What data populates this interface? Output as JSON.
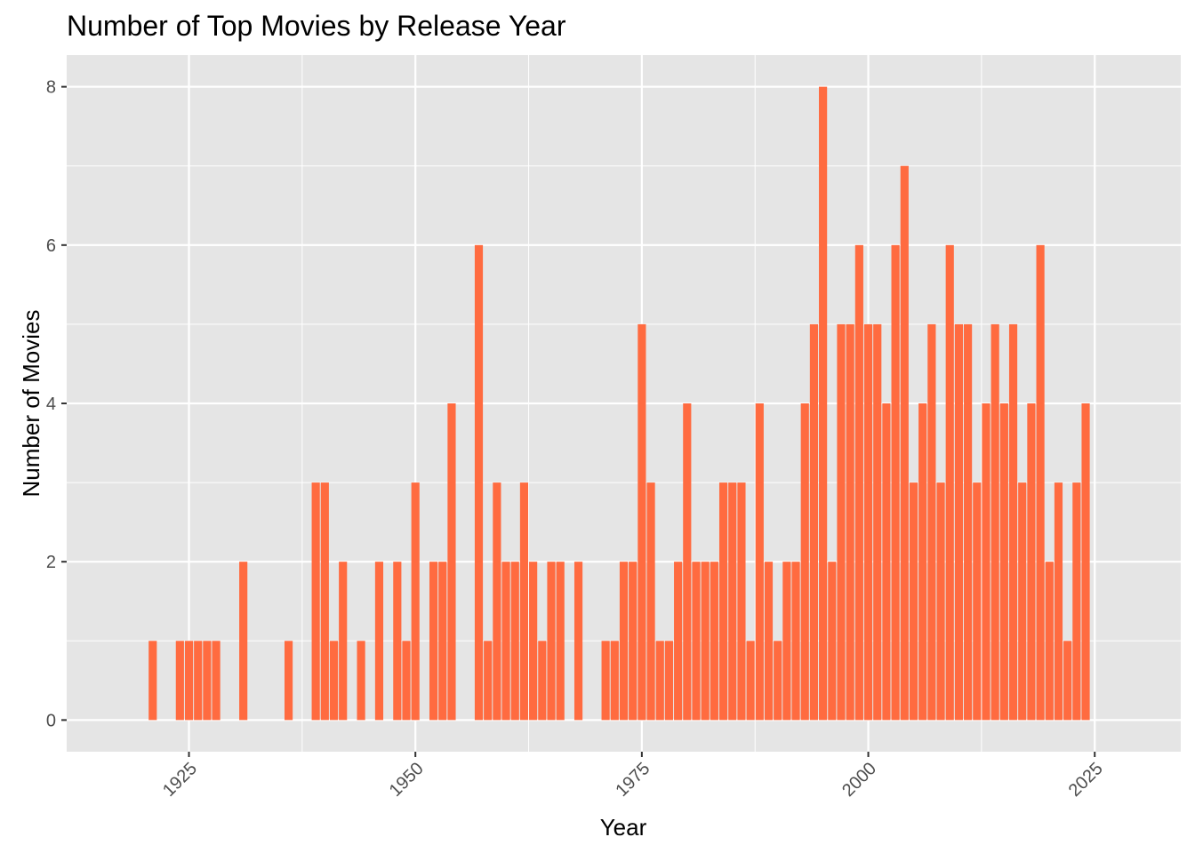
{
  "chart_data": {
    "type": "bar",
    "title": "Number of Top Movies by Release Year",
    "xlabel": "Year",
    "ylabel": "Number of Movies",
    "xlim": [
      1911.5,
      2034.5
    ],
    "ylim": [
      -0.4,
      8.4
    ],
    "x_ticks": [
      1925,
      1950,
      1975,
      2000,
      2025
    ],
    "y_ticks": [
      0,
      2,
      4,
      6,
      8
    ],
    "grid": true,
    "legend": "none",
    "colors": {
      "bar": "#FF6B40",
      "panel": "#E5E5E5",
      "grid": "#FFFFFF",
      "tick_text": "#4D4D4D",
      "tick_mark": "#333333"
    },
    "x": [
      1921,
      1924,
      1925,
      1926,
      1927,
      1928,
      1931,
      1936,
      1939,
      1940,
      1941,
      1942,
      1944,
      1946,
      1948,
      1949,
      1950,
      1952,
      1953,
      1954,
      1957,
      1958,
      1959,
      1960,
      1961,
      1962,
      1963,
      1964,
      1965,
      1966,
      1968,
      1971,
      1972,
      1973,
      1974,
      1975,
      1976,
      1977,
      1978,
      1979,
      1980,
      1981,
      1982,
      1983,
      1984,
      1985,
      1986,
      1987,
      1988,
      1989,
      1990,
      1991,
      1992,
      1993,
      1994,
      1995,
      1996,
      1997,
      1998,
      1999,
      2000,
      2001,
      2002,
      2003,
      2004,
      2005,
      2006,
      2007,
      2008,
      2009,
      2010,
      2011,
      2012,
      2013,
      2014,
      2015,
      2016,
      2017,
      2018,
      2019,
      2020,
      2021,
      2022,
      2023,
      2024
    ],
    "values": [
      1,
      1,
      1,
      1,
      1,
      1,
      2,
      1,
      3,
      3,
      1,
      2,
      1,
      2,
      2,
      1,
      3,
      2,
      2,
      4,
      6,
      1,
      3,
      2,
      2,
      3,
      2,
      1,
      2,
      2,
      2,
      1,
      1,
      2,
      2,
      5,
      3,
      1,
      1,
      2,
      4,
      2,
      2,
      2,
      3,
      3,
      3,
      1,
      4,
      2,
      1,
      2,
      2,
      4,
      5,
      8,
      2,
      5,
      5,
      6,
      5,
      5,
      4,
      6,
      7,
      3,
      4,
      5,
      3,
      6,
      5,
      5,
      3,
      4,
      5,
      4,
      5,
      3,
      4,
      6,
      2,
      3,
      1,
      3,
      4
    ]
  }
}
